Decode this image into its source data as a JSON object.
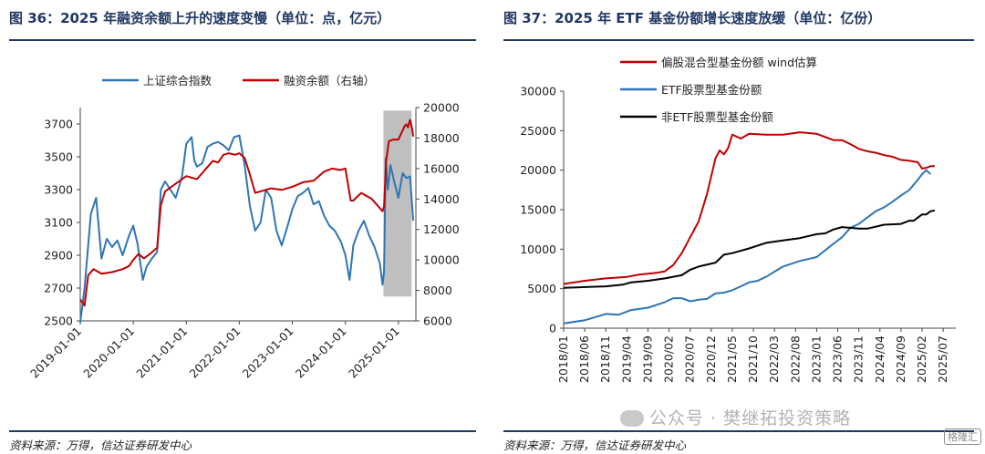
{
  "left": {
    "title": "图 36：2025 年融资余额上升的速度变慢（单位：点，亿元）",
    "source": "资料来源：万得，信达证券研发中心"
  },
  "right": {
    "title": "图 37：2025 年 ETF 基金份额增长速度放缓（单位：亿份）",
    "source": "资料来源：万得，信达证券研发中心"
  },
  "watermark": {
    "text": "公众号 · 樊继拓投资策略",
    "icon": "wechat-icon"
  },
  "corner_logo": "格隆汇",
  "colors": {
    "blue": "#2e75b6",
    "red": "#c00000",
    "black": "#000000",
    "shade": "#bfbfbf",
    "title": "#1f3864"
  },
  "chart_data": [
    {
      "type": "line",
      "title": "2025 年融资余额上升的速度变慢",
      "legend": [
        "上证综合指数",
        "融资余额（右轴）"
      ],
      "legend_position": "top-center",
      "x_ticks": [
        "2019-01-01",
        "2020-01-01",
        "2021-01-01",
        "2022-01-01",
        "2023-01-01",
        "2024-01-01",
        "2025-01-01"
      ],
      "y_left": {
        "ticks": [
          2500,
          2700,
          2900,
          3100,
          3300,
          3500,
          3700
        ],
        "range": [
          2500,
          3800
        ]
      },
      "y_right": {
        "ticks": [
          6000,
          8000,
          10000,
          12000,
          14000,
          16000,
          18000,
          20000
        ],
        "range": [
          6000,
          20000
        ]
      },
      "shaded_period": [
        "2024-09-20",
        "2025-03-31"
      ],
      "x_range": [
        2019.0,
        2025.33
      ],
      "series": [
        {
          "name": "上证综合指数",
          "axis": "left",
          "color": "#2e75b6",
          "x": [
            2019.0,
            2019.08,
            2019.2,
            2019.3,
            2019.4,
            2019.5,
            2019.6,
            2019.7,
            2019.8,
            2019.92,
            2020.0,
            2020.08,
            2020.18,
            2020.25,
            2020.35,
            2020.45,
            2020.52,
            2020.6,
            2020.7,
            2020.8,
            2020.92,
            2021.0,
            2021.1,
            2021.15,
            2021.2,
            2021.3,
            2021.4,
            2021.5,
            2021.6,
            2021.7,
            2021.8,
            2021.9,
            2022.0,
            2022.1,
            2022.2,
            2022.3,
            2022.4,
            2022.5,
            2022.6,
            2022.7,
            2022.8,
            2022.92,
            2023.0,
            2023.1,
            2023.2,
            2023.3,
            2023.4,
            2023.5,
            2023.6,
            2023.7,
            2023.8,
            2023.92,
            2024.0,
            2024.08,
            2024.15,
            2024.25,
            2024.35,
            2024.45,
            2024.55,
            2024.65,
            2024.7,
            2024.73,
            2024.76,
            2024.8,
            2024.85,
            2024.92,
            2025.0,
            2025.08,
            2025.15,
            2025.22,
            2025.28
          ],
          "values": [
            2490,
            2700,
            3150,
            3250,
            2880,
            3000,
            2950,
            2990,
            2900,
            3020,
            3080,
            2970,
            2750,
            2830,
            2880,
            2920,
            3300,
            3350,
            3300,
            3250,
            3380,
            3580,
            3620,
            3480,
            3440,
            3460,
            3560,
            3580,
            3590,
            3570,
            3540,
            3620,
            3630,
            3450,
            3200,
            3050,
            3100,
            3300,
            3250,
            3050,
            2960,
            3090,
            3180,
            3260,
            3280,
            3310,
            3210,
            3230,
            3140,
            3080,
            3050,
            2980,
            2900,
            2750,
            2960,
            3050,
            3110,
            3020,
            2950,
            2850,
            2720,
            2800,
            3490,
            3300,
            3450,
            3350,
            3250,
            3400,
            3370,
            3380,
            3110
          ]
        },
        {
          "name": "融资余额（右轴）",
          "axis": "right",
          "color": "#c00000",
          "x": [
            2019.0,
            2019.08,
            2019.15,
            2019.25,
            2019.4,
            2019.6,
            2019.8,
            2019.92,
            2020.0,
            2020.1,
            2020.2,
            2020.35,
            2020.45,
            2020.52,
            2020.6,
            2020.8,
            2021.0,
            2021.2,
            2021.4,
            2021.5,
            2021.6,
            2021.7,
            2021.8,
            2021.92,
            2022.0,
            2022.1,
            2022.2,
            2022.3,
            2022.4,
            2022.6,
            2022.8,
            2023.0,
            2023.2,
            2023.4,
            2023.6,
            2023.75,
            2023.9,
            2024.0,
            2024.1,
            2024.15,
            2024.3,
            2024.5,
            2024.65,
            2024.7,
            2024.73,
            2024.77,
            2024.82,
            2024.9,
            2025.0,
            2025.08,
            2025.12,
            2025.15,
            2025.18,
            2025.22,
            2025.26,
            2025.28
          ],
          "values": [
            7400,
            7000,
            9000,
            9400,
            9100,
            9200,
            9400,
            9600,
            10000,
            10400,
            10100,
            10500,
            10800,
            13600,
            14500,
            15000,
            15500,
            15300,
            16100,
            16500,
            16400,
            16900,
            17000,
            16900,
            17000,
            16700,
            15600,
            14400,
            14500,
            14700,
            14600,
            14800,
            15100,
            15200,
            15800,
            16000,
            15900,
            16000,
            13900,
            13900,
            14400,
            14000,
            13400,
            13200,
            13500,
            16500,
            17800,
            17900,
            17900,
            18500,
            18800,
            18900,
            18700,
            19200,
            18600,
            18100
          ]
        }
      ]
    },
    {
      "type": "line",
      "title": "2025 年 ETF 基金份额增长速度放缓",
      "legend": [
        "偏股混合型基金份额 wind估算",
        "ETF股票型基金份额",
        "非ETF股票型基金份额"
      ],
      "legend_position": "top-center",
      "x_ticks": [
        "2018/01",
        "2018/06",
        "2018/11",
        "2019/04",
        "2019/09",
        "2020/02",
        "2020/07",
        "2020/12",
        "2021/05",
        "2021/10",
        "2022/03",
        "2022/08",
        "2023/01",
        "2023/06",
        "2023/11",
        "2024/04",
        "2024/09",
        "2025/02",
        "2025/07"
      ],
      "y_ticks": [
        0,
        5000,
        10000,
        15000,
        20000,
        25000,
        30000
      ],
      "ylim": [
        0,
        30000
      ],
      "x_range": [
        0,
        93
      ],
      "series": [
        {
          "name": "偏股混合型基金份额 wind估算",
          "color": "#c00000",
          "x": [
            0,
            5,
            10,
            15,
            18,
            20,
            22,
            24,
            26,
            28,
            30,
            32,
            34,
            36,
            37,
            38,
            39,
            40,
            42,
            44,
            48,
            52,
            56,
            60,
            64,
            66,
            68,
            70,
            72,
            74,
            76,
            78,
            80,
            82,
            83,
            84,
            85,
            86,
            87,
            88
          ],
          "values": [
            5600,
            6000,
            6300,
            6500,
            6800,
            6900,
            7000,
            7200,
            8000,
            9500,
            11500,
            13500,
            17000,
            21500,
            22500,
            22000,
            22800,
            24500,
            24000,
            24600,
            24500,
            24500,
            24800,
            24600,
            23800,
            23800,
            23300,
            22700,
            22400,
            22200,
            21900,
            21700,
            21300,
            21200,
            21100,
            21000,
            20200,
            20300,
            20500,
            20500
          ]
        },
        {
          "name": "ETF股票型基金份额",
          "color": "#2e75b6",
          "x": [
            0,
            5,
            10,
            13,
            16,
            20,
            24,
            26,
            28,
            30,
            32,
            34,
            36,
            38,
            40,
            42,
            44,
            46,
            48,
            52,
            56,
            60,
            64,
            66,
            68,
            70,
            72,
            74,
            76,
            78,
            80,
            82,
            84,
            85,
            86,
            87
          ],
          "values": [
            600,
            1000,
            1800,
            1700,
            2300,
            2600,
            3300,
            3800,
            3800,
            3400,
            3600,
            3700,
            4400,
            4500,
            4800,
            5300,
            5800,
            6000,
            6500,
            7800,
            8500,
            9000,
            10700,
            11500,
            12700,
            13200,
            14000,
            14800,
            15300,
            16000,
            16800,
            17500,
            18800,
            19500,
            20000,
            19500
          ]
        },
        {
          "name": "非ETF股票型基金份额",
          "color": "#000000",
          "x": [
            0,
            5,
            10,
            14,
            16,
            20,
            24,
            28,
            30,
            32,
            36,
            38,
            40,
            44,
            48,
            52,
            56,
            60,
            62,
            64,
            66,
            68,
            70,
            72,
            76,
            80,
            82,
            83,
            84,
            85,
            86,
            87,
            88
          ],
          "values": [
            5100,
            5200,
            5300,
            5500,
            5800,
            6000,
            6300,
            6700,
            7400,
            7800,
            8300,
            9300,
            9500,
            10100,
            10800,
            11100,
            11400,
            11900,
            12000,
            12500,
            12800,
            12700,
            12600,
            12600,
            13100,
            13200,
            13600,
            13600,
            14000,
            14400,
            14400,
            14800,
            14900
          ]
        }
      ]
    }
  ]
}
